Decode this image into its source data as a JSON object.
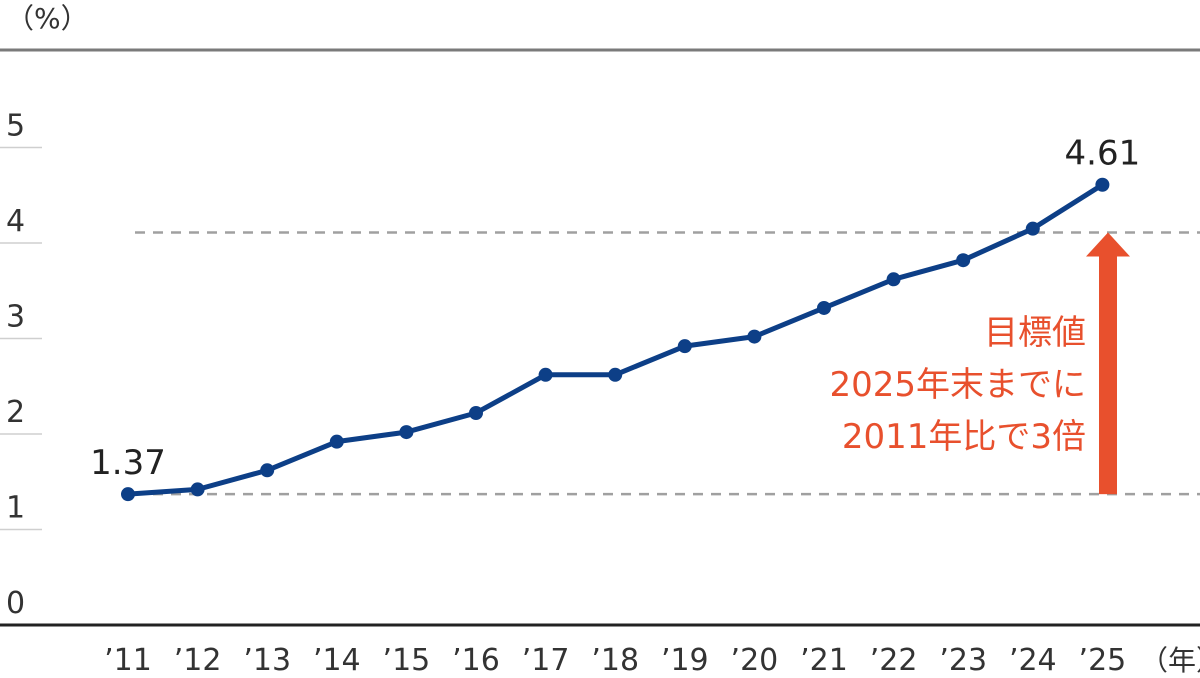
{
  "chart_data": {
    "type": "line",
    "y_unit_label": "（%）",
    "x_unit_label": "（年）",
    "categories": [
      "’11",
      "’12",
      "’13",
      "’14",
      "’15",
      "’16",
      "’17",
      "’18",
      "’19",
      "’20",
      "’21",
      "’22",
      "’23",
      "’24",
      "’25"
    ],
    "series": [
      {
        "values": [
          1.37,
          1.42,
          1.62,
          1.92,
          2.02,
          2.22,
          2.62,
          2.62,
          2.92,
          3.02,
          3.32,
          3.62,
          3.82,
          4.15,
          4.61
        ]
      }
    ],
    "yticks": [
      "0",
      "1",
      "2",
      "3",
      "4",
      "5"
    ],
    "ylim": [
      0,
      5.2
    ],
    "data_labels": [
      {
        "index": 0,
        "text": "1.37"
      },
      {
        "index": 14,
        "text": "4.61"
      }
    ],
    "reference_lines": [
      1.37,
      4.11
    ],
    "annotation": {
      "lines": [
        "目標値",
        "2025年末までに",
        "2011年比で3倍"
      ]
    },
    "colors": {
      "line": "#0d3f87",
      "arrow": "#e8502d",
      "reference": "#a0a0a0",
      "axis": "#222222"
    },
    "grid": false
  }
}
